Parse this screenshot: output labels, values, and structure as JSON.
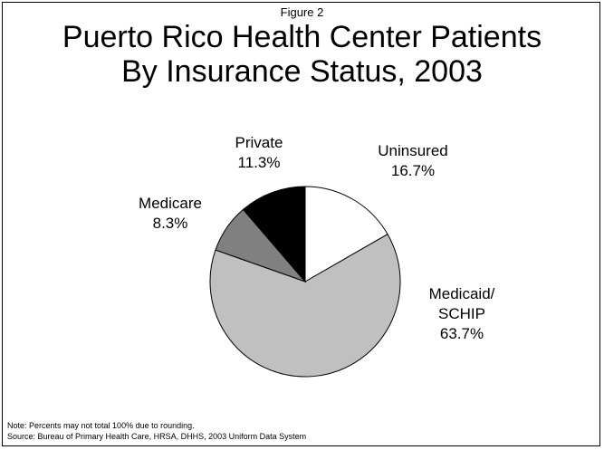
{
  "figure_label": "Figure 2",
  "chart_data": {
    "type": "pie",
    "title": "Puerto Rico Health Center Patients By Insurance Status, 2003",
    "title_lines": [
      "Puerto Rico Health Center Patients",
      "By Insurance Status, 2003"
    ],
    "slices": [
      {
        "name": "Uninsured",
        "label_lines": [
          "Uninsured",
          "16.7%"
        ],
        "value": 16.7,
        "color": "#ffffff"
      },
      {
        "name": "Medicaid/SCHIP",
        "label_lines": [
          "Medicaid/",
          "SCHIP",
          "63.7%"
        ],
        "value": 63.7,
        "color": "#c0c0c0"
      },
      {
        "name": "Medicare",
        "label_lines": [
          "Medicare",
          "8.3%"
        ],
        "value": 8.3,
        "color": "#808080"
      },
      {
        "name": "Private",
        "label_lines": [
          "Private",
          "11.3%"
        ],
        "value": 11.3,
        "color": "#000000"
      }
    ],
    "start": "top",
    "direction": "clockwise"
  },
  "notes": {
    "note": "Note:  Percents may not total 100% due to rounding.",
    "source": "Source:  Bureau of Primary Health Care, HRSA, DHHS, 2003 Uniform Data System"
  }
}
